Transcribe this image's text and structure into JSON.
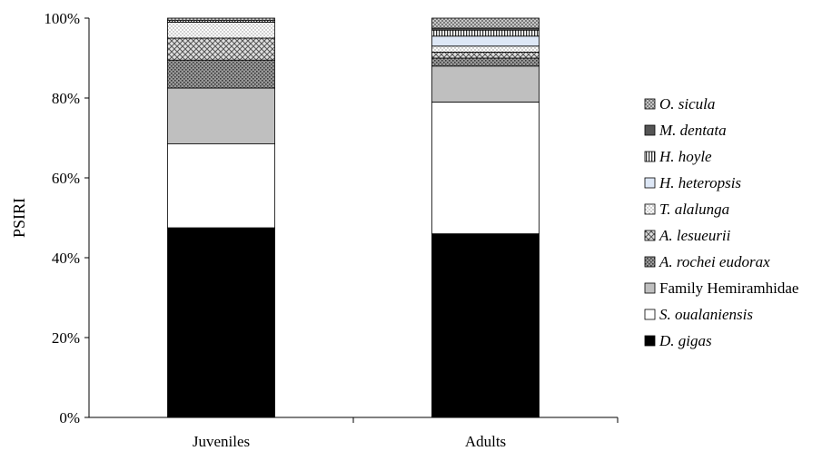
{
  "chart_data": {
    "type": "bar",
    "stacked": true,
    "title": "",
    "xlabel": "",
    "ylabel": "PSIRI",
    "ylim": [
      0,
      100
    ],
    "y_ticks": [
      "0%",
      "20%",
      "40%",
      "60%",
      "80%",
      "100%"
    ],
    "categories": [
      "Juveniles",
      "Adults"
    ],
    "series": [
      {
        "name": "D. gigas",
        "italic": true,
        "fill": "solid-black",
        "values": [
          47.5,
          46.0
        ]
      },
      {
        "name": "S. oualaniensis",
        "italic": true,
        "fill": "white",
        "values": [
          21.0,
          33.0
        ]
      },
      {
        "name": "Family Hemiramhidae",
        "italic": false,
        "fill": "light-gray",
        "values": [
          14.0,
          9.0
        ]
      },
      {
        "name": "A. rochei eudorax",
        "italic": true,
        "fill": "dark-speckle",
        "values": [
          7.0,
          2.0
        ]
      },
      {
        "name": "A. lesueurii",
        "italic": true,
        "fill": "crosshatch",
        "values": [
          5.5,
          1.5
        ]
      },
      {
        "name": "T. alalunga",
        "italic": true,
        "fill": "light-dots",
        "values": [
          4.0,
          1.5
        ]
      },
      {
        "name": "H. heteropsis",
        "italic": true,
        "fill": "pale-blue",
        "values": [
          0.0,
          2.5
        ]
      },
      {
        "name": "H. hoyle",
        "italic": true,
        "fill": "vertical-stripes",
        "values": [
          0.4,
          1.5
        ]
      },
      {
        "name": "M. dentata",
        "italic": true,
        "fill": "dark-gray",
        "values": [
          0.0,
          0.5
        ]
      },
      {
        "name": "O. sicula",
        "italic": true,
        "fill": "checker-gray",
        "values": [
          0.6,
          2.5
        ]
      }
    ],
    "legend_position": "right",
    "grid": false
  }
}
